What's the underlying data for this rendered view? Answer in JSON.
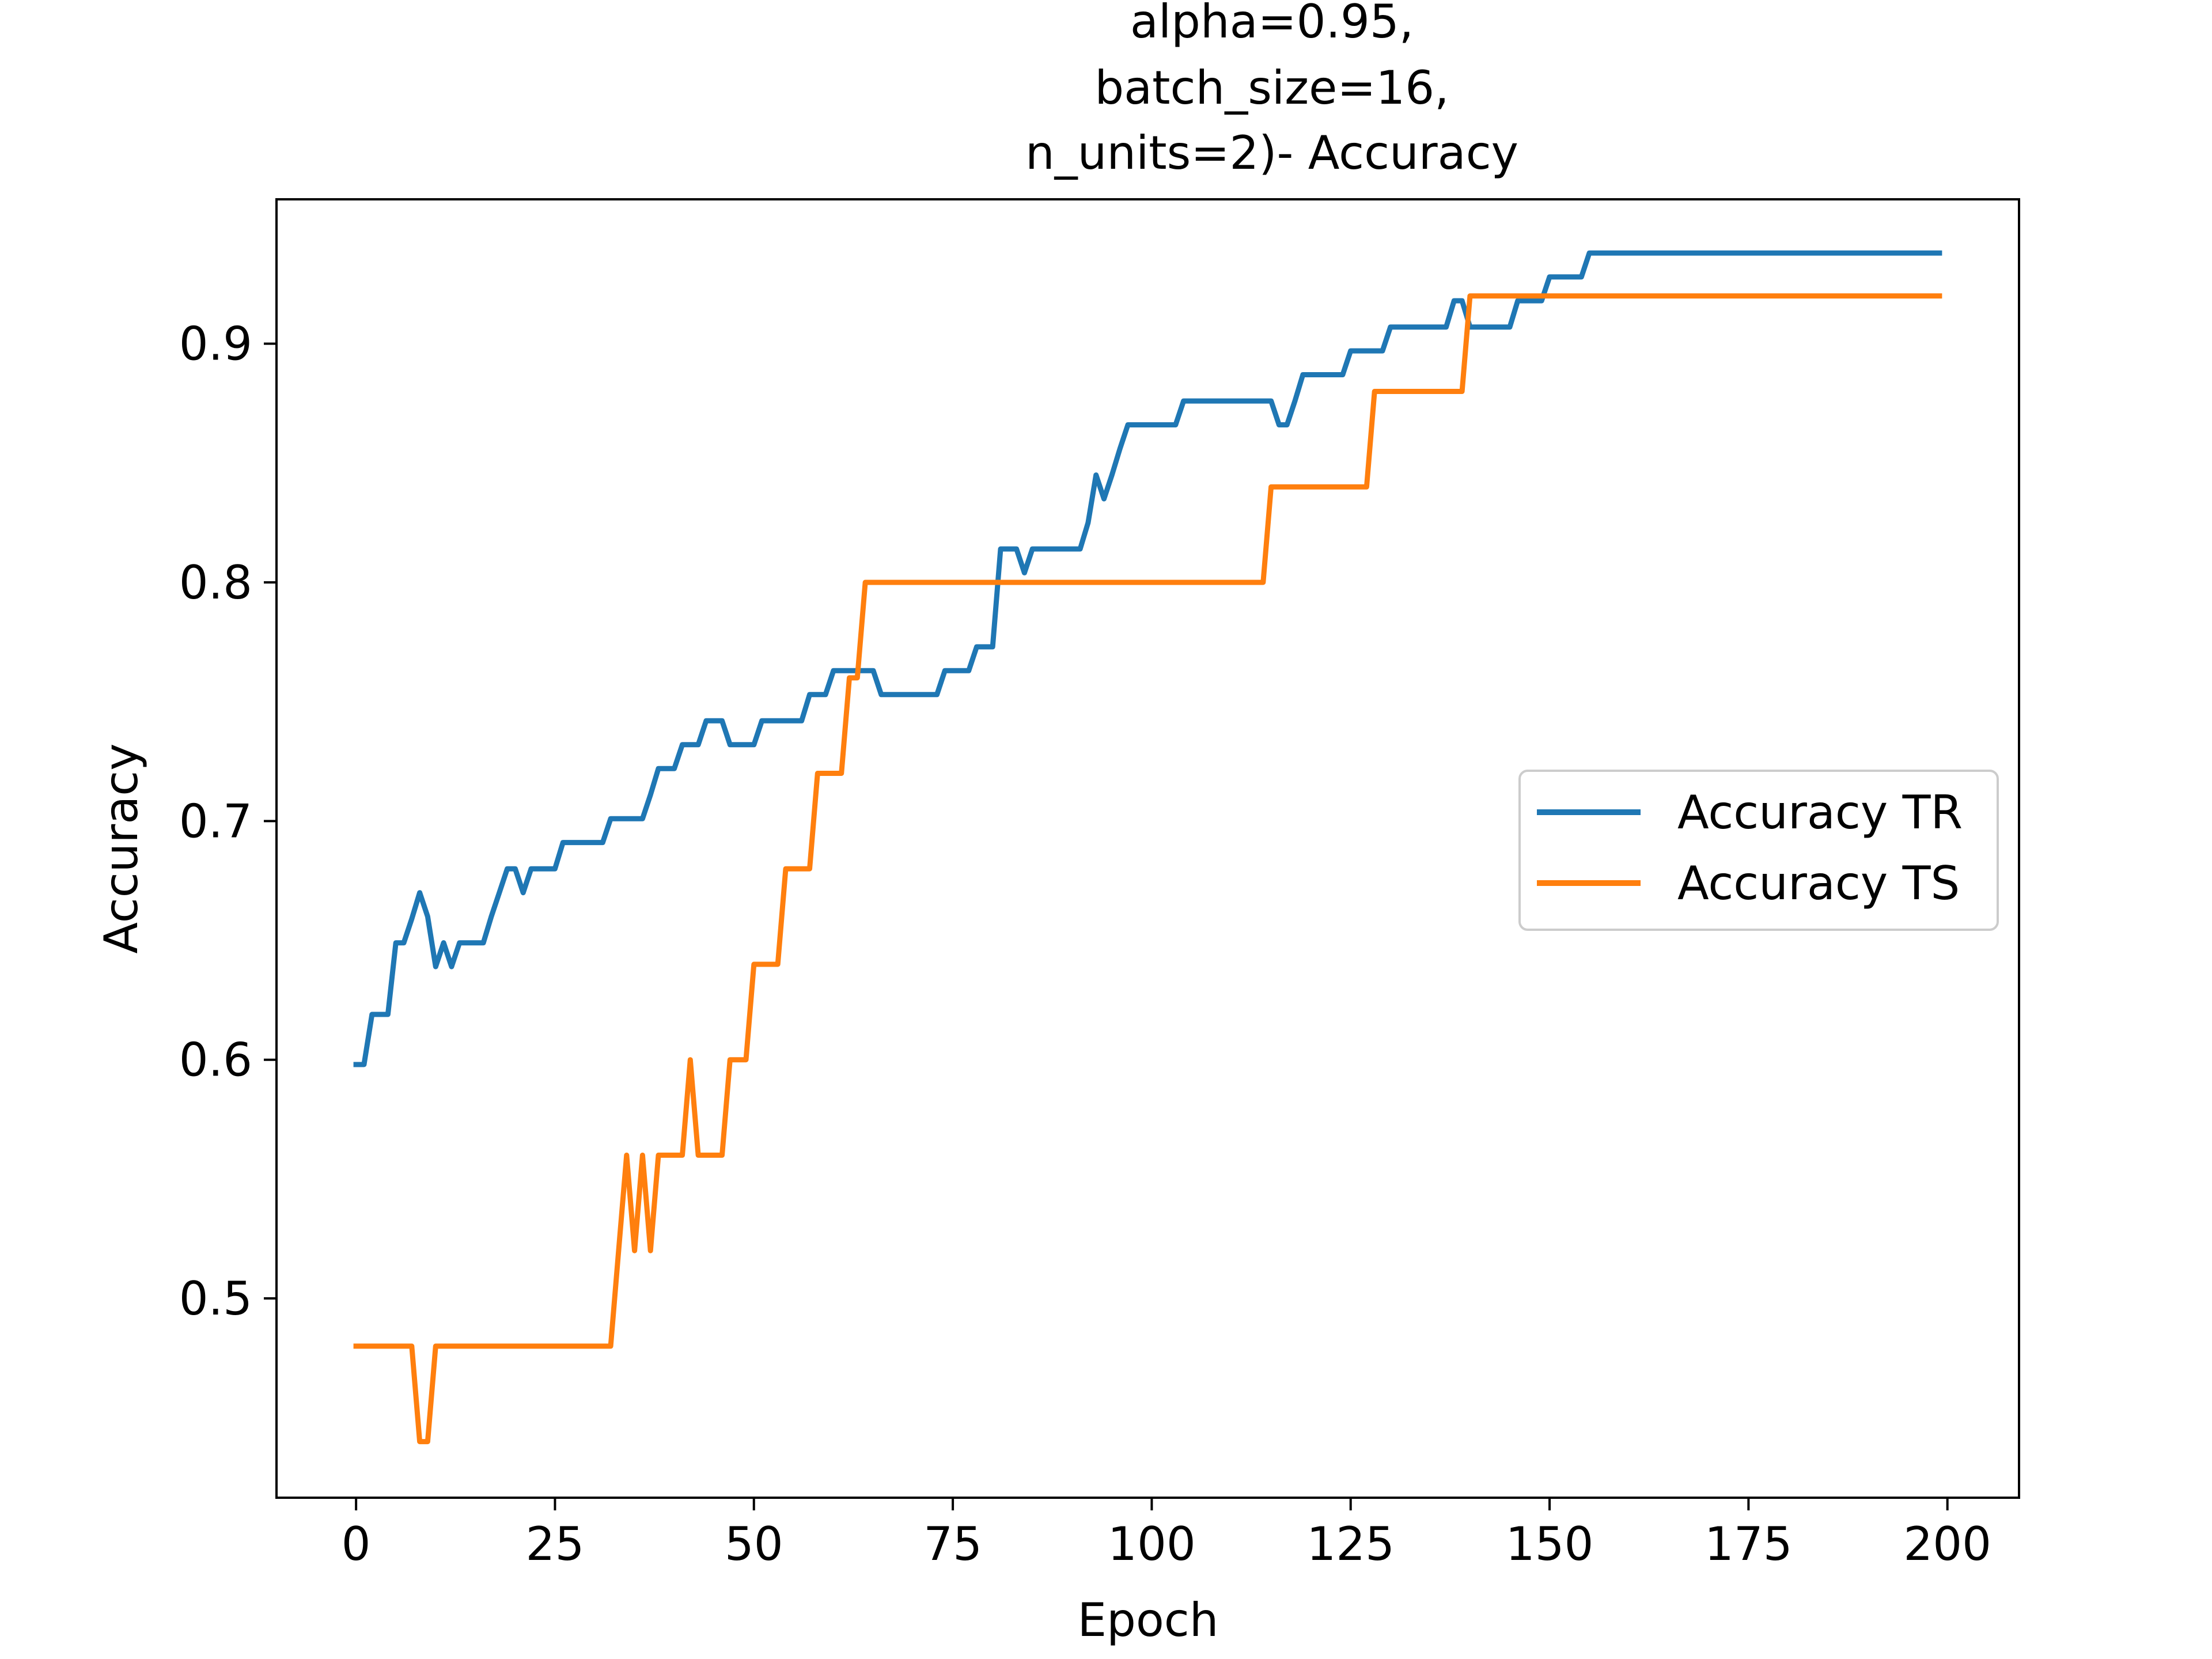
{
  "chart_data": {
    "type": "line",
    "title_lines": [
      "alpha=0.95,",
      "batch_size=16,",
      "n_units=2)- Accuracy"
    ],
    "xlabel": "Epoch",
    "ylabel": "Accuracy",
    "xlim": [
      -10,
      209
    ],
    "ylim": [
      0.4165,
      0.9605
    ],
    "xticks": [
      0,
      25,
      50,
      75,
      100,
      125,
      150,
      175,
      200
    ],
    "yticks": [
      0.5,
      0.6,
      0.7,
      0.8,
      0.9
    ],
    "ytick_labels": [
      "0.5",
      "0.6",
      "0.7",
      "0.8",
      "0.9"
    ],
    "grid": false,
    "legend_position": "center-right",
    "series": [
      {
        "name": "Accuracy TR",
        "color": "#1f77b4",
        "points": [
          [
            0,
            0.598
          ],
          [
            1,
            0.598
          ],
          [
            2,
            0.619
          ],
          [
            3,
            0.619
          ],
          [
            4,
            0.619
          ],
          [
            5,
            0.649
          ],
          [
            6,
            0.649
          ],
          [
            7,
            0.659
          ],
          [
            8,
            0.67
          ],
          [
            9,
            0.66
          ],
          [
            10,
            0.639
          ],
          [
            11,
            0.649
          ],
          [
            12,
            0.639
          ],
          [
            13,
            0.649
          ],
          [
            14,
            0.649
          ],
          [
            15,
            0.649
          ],
          [
            16,
            0.649
          ],
          [
            17,
            0.66
          ],
          [
            18,
            0.67
          ],
          [
            19,
            0.68
          ],
          [
            20,
            0.68
          ],
          [
            21,
            0.67
          ],
          [
            22,
            0.68
          ],
          [
            23,
            0.68
          ],
          [
            24,
            0.68
          ],
          [
            25,
            0.68
          ],
          [
            26,
            0.691
          ],
          [
            27,
            0.691
          ],
          [
            30,
            0.691
          ],
          [
            31,
            0.691
          ],
          [
            32,
            0.701
          ],
          [
            33,
            0.701
          ],
          [
            36,
            0.701
          ],
          [
            37,
            0.711
          ],
          [
            38,
            0.722
          ],
          [
            39,
            0.722
          ],
          [
            40,
            0.722
          ],
          [
            41,
            0.732
          ],
          [
            42,
            0.732
          ],
          [
            43,
            0.732
          ],
          [
            44,
            0.742
          ],
          [
            45,
            0.742
          ],
          [
            46,
            0.742
          ],
          [
            47,
            0.732
          ],
          [
            48,
            0.732
          ],
          [
            50,
            0.732
          ],
          [
            51,
            0.742
          ],
          [
            52,
            0.742
          ],
          [
            56,
            0.742
          ],
          [
            57,
            0.753
          ],
          [
            58,
            0.753
          ],
          [
            59,
            0.753
          ],
          [
            60,
            0.763
          ],
          [
            61,
            0.763
          ],
          [
            62,
            0.763
          ],
          [
            63,
            0.763
          ],
          [
            64,
            0.763
          ],
          [
            65,
            0.763
          ],
          [
            66,
            0.753
          ],
          [
            67,
            0.753
          ],
          [
            73,
            0.753
          ],
          [
            74,
            0.763
          ],
          [
            75,
            0.763
          ],
          [
            77,
            0.763
          ],
          [
            78,
            0.773
          ],
          [
            79,
            0.773
          ],
          [
            80,
            0.773
          ],
          [
            81,
            0.814
          ],
          [
            82,
            0.814
          ],
          [
            83,
            0.814
          ],
          [
            84,
            0.804
          ],
          [
            85,
            0.814
          ],
          [
            86,
            0.814
          ],
          [
            91,
            0.814
          ],
          [
            92,
            0.825
          ],
          [
            93,
            0.845
          ],
          [
            94,
            0.835
          ],
          [
            95,
            0.845
          ],
          [
            96,
            0.856
          ],
          [
            97,
            0.866
          ],
          [
            98,
            0.866
          ],
          [
            103,
            0.866
          ],
          [
            104,
            0.876
          ],
          [
            105,
            0.876
          ],
          [
            115,
            0.876
          ],
          [
            116,
            0.866
          ],
          [
            117,
            0.866
          ],
          [
            118,
            0.876
          ],
          [
            119,
            0.887
          ],
          [
            120,
            0.887
          ],
          [
            124,
            0.887
          ],
          [
            125,
            0.897
          ],
          [
            126,
            0.897
          ],
          [
            129,
            0.897
          ],
          [
            130,
            0.907
          ],
          [
            131,
            0.907
          ],
          [
            137,
            0.907
          ],
          [
            138,
            0.918
          ],
          [
            139,
            0.918
          ],
          [
            140,
            0.907
          ],
          [
            141,
            0.907
          ],
          [
            145,
            0.907
          ],
          [
            146,
            0.918
          ],
          [
            147,
            0.918
          ],
          [
            149,
            0.918
          ],
          [
            150,
            0.928
          ],
          [
            151,
            0.928
          ],
          [
            154,
            0.928
          ],
          [
            155,
            0.938
          ],
          [
            156,
            0.938
          ],
          [
            199,
            0.938
          ]
        ]
      },
      {
        "name": "Accuracy TS",
        "color": "#ff7f0e",
        "points": [
          [
            0,
            0.48
          ],
          [
            7,
            0.48
          ],
          [
            8,
            0.44
          ],
          [
            9,
            0.44
          ],
          [
            10,
            0.48
          ],
          [
            11,
            0.48
          ],
          [
            32,
            0.48
          ],
          [
            33,
            0.52
          ],
          [
            34,
            0.56
          ],
          [
            35,
            0.52
          ],
          [
            36,
            0.56
          ],
          [
            37,
            0.52
          ],
          [
            38,
            0.56
          ],
          [
            39,
            0.56
          ],
          [
            41,
            0.56
          ],
          [
            42,
            0.6
          ],
          [
            43,
            0.56
          ],
          [
            44,
            0.56
          ],
          [
            46,
            0.56
          ],
          [
            47,
            0.6
          ],
          [
            48,
            0.6
          ],
          [
            49,
            0.6
          ],
          [
            50,
            0.64
          ],
          [
            51,
            0.64
          ],
          [
            53,
            0.64
          ],
          [
            54,
            0.68
          ],
          [
            55,
            0.68
          ],
          [
            57,
            0.68
          ],
          [
            58,
            0.72
          ],
          [
            59,
            0.72
          ],
          [
            61,
            0.72
          ],
          [
            62,
            0.76
          ],
          [
            63,
            0.76
          ],
          [
            64,
            0.8
          ],
          [
            65,
            0.8
          ],
          [
            114,
            0.8
          ],
          [
            115,
            0.84
          ],
          [
            116,
            0.84
          ],
          [
            127,
            0.84
          ],
          [
            128,
            0.88
          ],
          [
            129,
            0.88
          ],
          [
            139,
            0.88
          ],
          [
            140,
            0.92
          ],
          [
            141,
            0.92
          ],
          [
            199,
            0.92
          ]
        ]
      }
    ]
  }
}
